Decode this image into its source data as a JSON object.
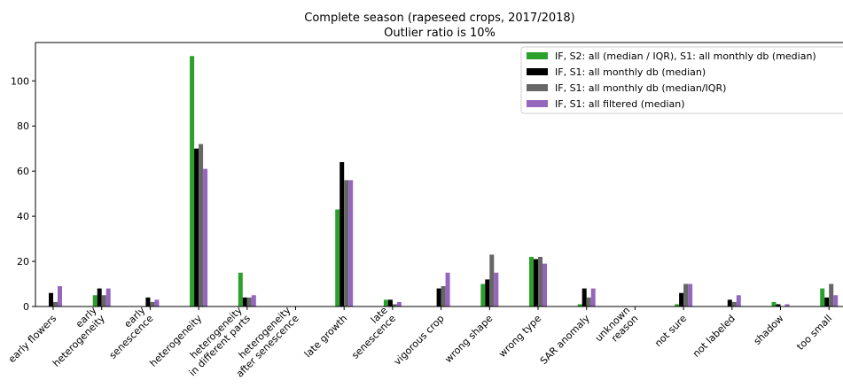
{
  "chart_data": {
    "type": "bar",
    "title": "Complete season (rapeseed crops, 2017/2018)",
    "subtitle": "Outlier ratio is 10%",
    "categories": [
      "early flowers",
      "early\nheterogeneity",
      "early\nsenescence",
      "heterogeneity",
      "heterogeneity\nin different parts",
      "heterogeneity\nafter senescence",
      "late growth",
      "late\nsenescence",
      "vigorous crop",
      "wrong shape",
      "wrong type",
      "SAR anomaly",
      "unknown\nreason",
      "not sure",
      "not labeled",
      "shadow",
      "too small"
    ],
    "series": [
      {
        "name": "IF, S2: all (median / IQR), S1: all monthly db (median)",
        "color": "#2ca02c",
        "values": [
          0,
          5,
          0,
          111,
          15,
          0,
          43,
          3,
          0,
          10,
          22,
          1,
          0,
          1,
          0,
          2,
          8
        ]
      },
      {
        "name": "IF, S1: all monthly db (median)",
        "color": "#000000",
        "values": [
          6,
          8,
          4,
          70,
          4,
          0,
          64,
          3,
          8,
          12,
          21,
          8,
          0,
          6,
          3,
          1,
          4
        ]
      },
      {
        "name": "IF, S1: all monthly db (median/IQR)",
        "color": "#666666",
        "values": [
          2,
          5,
          2,
          72,
          4,
          0,
          56,
          1,
          9,
          23,
          22,
          4,
          0,
          10,
          2,
          0,
          10
        ]
      },
      {
        "name": "IF, S1: all filtered (median)",
        "color": "#9467bd",
        "values": [
          9,
          8,
          3,
          61,
          5,
          0,
          56,
          2,
          15,
          15,
          19,
          8,
          0,
          10,
          5,
          1,
          5
        ]
      }
    ],
    "ylim": [
      0,
      117
    ],
    "yticks": [
      0,
      20,
      40,
      60,
      80,
      100
    ],
    "legend": "upper right"
  }
}
